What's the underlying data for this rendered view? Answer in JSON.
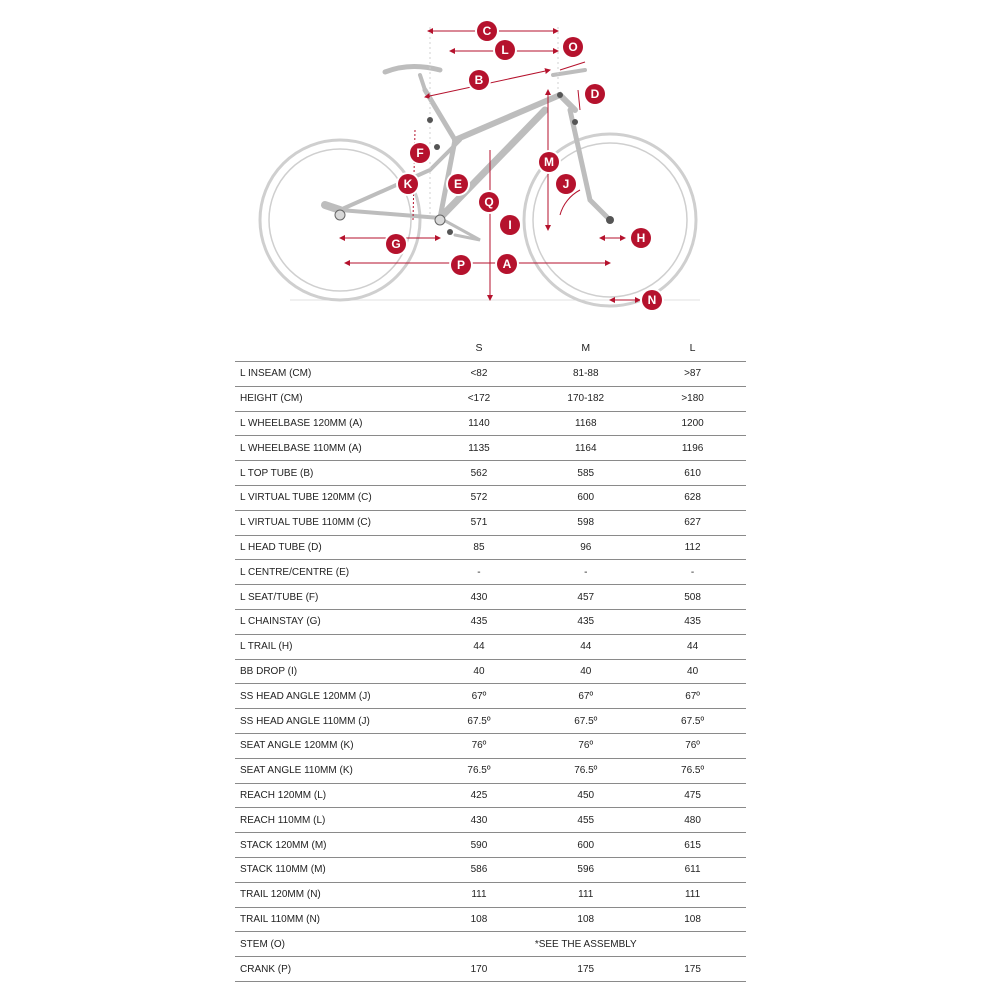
{
  "colors": {
    "accent": "#b5122d",
    "frame": "#c8c8c8",
    "rule": "#8a8a8a"
  },
  "markers": [
    "C",
    "L",
    "O",
    "B",
    "D",
    "F",
    "K",
    "E",
    "Q",
    "M",
    "J",
    "I",
    "G",
    "H",
    "P",
    "A",
    "N"
  ],
  "table": {
    "sizes": [
      "S",
      "M",
      "L"
    ],
    "rows": [
      {
        "label": "L INSEAM (CM)",
        "s": "<82",
        "m": "81-88",
        "l": ">87"
      },
      {
        "label": "HEIGHT (CM)",
        "s": "<172",
        "m": "170-182",
        "l": ">180"
      },
      {
        "label": "L WHEELBASE 120MM (A)",
        "s": "1140",
        "m": "1168",
        "l": "1200"
      },
      {
        "label": "L WHEELBASE 110MM (A)",
        "s": "1135",
        "m": "1164",
        "l": "1196"
      },
      {
        "label": "L TOP TUBE (B)",
        "s": "562",
        "m": "585",
        "l": "610"
      },
      {
        "label": "L VIRTUAL TUBE 120MM (C)",
        "s": "572",
        "m": "600",
        "l": "628"
      },
      {
        "label": "L VIRTUAL TUBE 110MM (C)",
        "s": "571",
        "m": "598",
        "l": "627"
      },
      {
        "label": "L HEAD TUBE (D)",
        "s": "85",
        "m": "96",
        "l": "112"
      },
      {
        "label": "L CENTRE/CENTRE (E)",
        "s": "-",
        "m": "-",
        "l": "-"
      },
      {
        "label": "L SEAT/TUBE (F)",
        "s": "430",
        "m": "457",
        "l": "508"
      },
      {
        "label": "L CHAINSTAY (G)",
        "s": "435",
        "m": "435",
        "l": "435"
      },
      {
        "label": "L TRAIL (H)",
        "s": "44",
        "m": "44",
        "l": "44"
      },
      {
        "label": "BB DROP (I)",
        "s": "40",
        "m": "40",
        "l": "40"
      },
      {
        "label": "SS HEAD ANGLE 120MM (J)",
        "s": "67º",
        "m": "67º",
        "l": "67º"
      },
      {
        "label": "SS HEAD ANGLE 110MM (J)",
        "s": "67.5º",
        "m": "67.5º",
        "l": "67.5º"
      },
      {
        "label": "SEAT ANGLE 120MM (K)",
        "s": "76º",
        "m": "76º",
        "l": "76º"
      },
      {
        "label": "SEAT ANGLE 110MM (K)",
        "s": "76.5º",
        "m": "76.5º",
        "l": "76.5º"
      },
      {
        "label": "REACH 120MM (L)",
        "s": "425",
        "m": "450",
        "l": "475"
      },
      {
        "label": "REACH 110MM (L)",
        "s": "430",
        "m": "455",
        "l": "480"
      },
      {
        "label": "STACK 120MM (M)",
        "s": "590",
        "m": "600",
        "l": "615"
      },
      {
        "label": "STACK 110MM (M)",
        "s": "586",
        "m": "596",
        "l": "611"
      },
      {
        "label": "TRAIL 120MM (N)",
        "s": "111",
        "m": "111",
        "l": "111"
      },
      {
        "label": "TRAIL 110MM (N)",
        "s": "108",
        "m": "108",
        "l": "108"
      },
      {
        "label": "STEM (O)",
        "span": "*SEE THE ASSEMBLY"
      },
      {
        "label": "CRANK (P)",
        "s": "170",
        "m": "175",
        "l": "175"
      }
    ]
  }
}
